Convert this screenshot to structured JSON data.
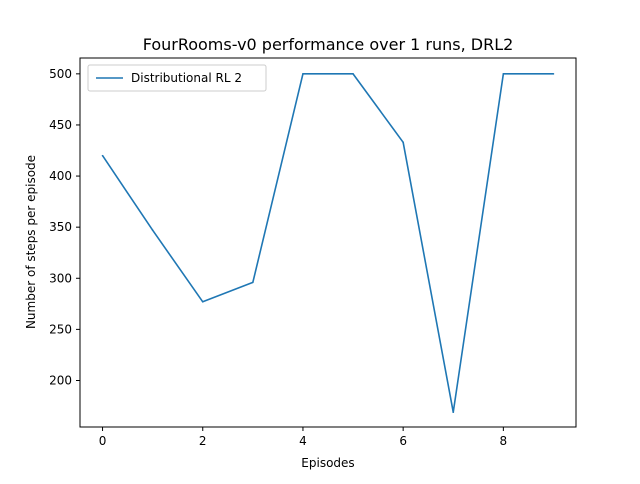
{
  "colors": {
    "series": "#1f77b4",
    "axes": "#000000",
    "legend_border": "#cccccc",
    "background": "#ffffff"
  },
  "chart_data": {
    "type": "line",
    "title": "FourRooms-v0 performance over 1 runs, DRL2",
    "xlabel": "Episodes",
    "ylabel": "Number of steps per episode",
    "xlim": [
      -0.45,
      9.45
    ],
    "ylim": [
      154.5,
      515.5
    ],
    "xticks": [
      0,
      2,
      4,
      6,
      8
    ],
    "yticks": [
      200,
      250,
      300,
      350,
      400,
      450,
      500
    ],
    "xtick_labels": [
      "0",
      "2",
      "4",
      "6",
      "8"
    ],
    "ytick_labels": [
      "200",
      "250",
      "300",
      "350",
      "400",
      "450",
      "500"
    ],
    "grid": false,
    "legend_position": "upper-left",
    "x": [
      0,
      1,
      2,
      3,
      4,
      5,
      6,
      7,
      8,
      9
    ],
    "series": [
      {
        "name": "Distributional RL 2",
        "values": [
          420,
          347,
          277,
          296,
          500,
          500,
          433,
          169,
          500,
          500
        ]
      }
    ]
  }
}
